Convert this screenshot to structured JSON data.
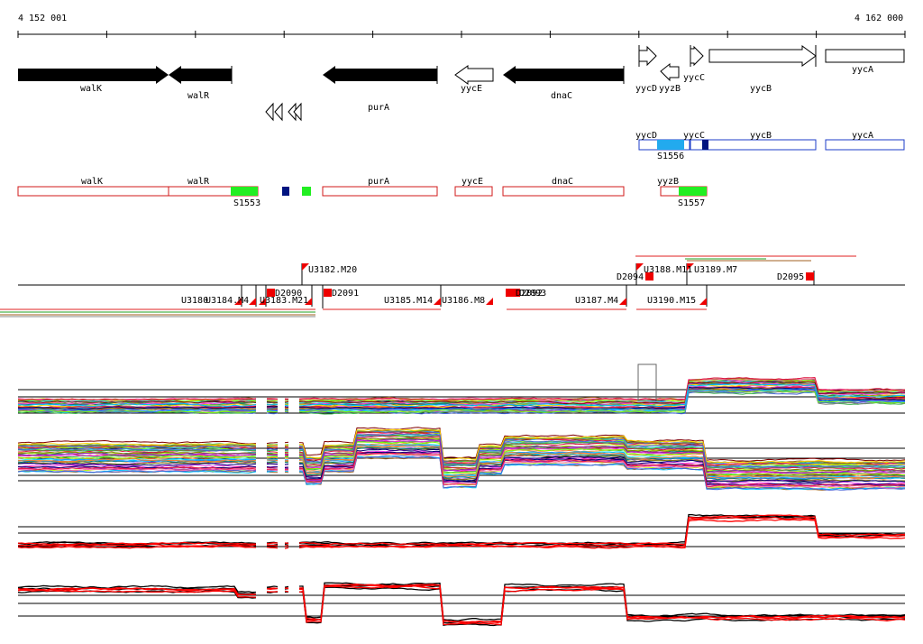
{
  "ruler": {
    "start_label": "4 152 001",
    "end_label": "4 162 000"
  },
  "gene_names": [
    "walK",
    "walR",
    "purA",
    "yycE",
    "dnaC",
    "yycD",
    "yyzB",
    "yycC",
    "yycB",
    "yycA"
  ],
  "ops_top": {
    "names": [
      "yycD",
      "yycC",
      "yycB",
      "yycA"
    ],
    "segment": "S1556"
  },
  "ops_bottom": {
    "names": [
      "walK",
      "walR",
      "purA",
      "yycE",
      "dnaC",
      "yyzB"
    ],
    "segments": [
      "S1553",
      "S1557"
    ]
  },
  "features": {
    "labels": [
      "U3182.M20",
      "D2094",
      "U3188.M11",
      "U3189.M7",
      "D2095",
      "D2090",
      "D2091",
      "U3180",
      "U3184.M4",
      "U3183.M21",
      "U3185.M14",
      "U3186.M8",
      "D2092",
      "D2093",
      "U3187.M4",
      "U3190.M15"
    ]
  },
  "colors": {
    "gene_fill": "#000000",
    "operon_blue": "#1c3cc8",
    "operon_red": "#d01818",
    "segment_green": "#22ee22",
    "segment_cyan": "#22aaee",
    "marker_navy": "#001480",
    "feature_red": "#ee0000",
    "profile_red": "#ff0000"
  }
}
